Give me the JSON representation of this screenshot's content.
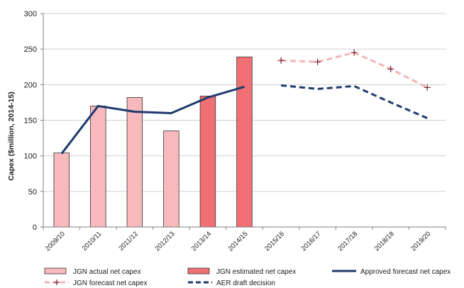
{
  "chart_data": {
    "type": "bar",
    "title": "",
    "xlabel": "",
    "ylabel": "Capex ($million, 2014-15)",
    "ylim": [
      0,
      300
    ],
    "yticks": [
      0,
      50,
      100,
      150,
      200,
      250,
      300
    ],
    "grid": true,
    "legend_position": "bottom",
    "categories": [
      "2009/10",
      "2010/11",
      "2011/12",
      "2012/13",
      "2013/14",
      "2014/15",
      "2015/16",
      "2016/17",
      "2017/18",
      "2018/18",
      "2019/20"
    ],
    "series": [
      {
        "name": "JGN actual net capex",
        "kind": "bar",
        "color": "#f7b9bc",
        "values": [
          104,
          170,
          182,
          135,
          null,
          null,
          null,
          null,
          null,
          null,
          null
        ]
      },
      {
        "name": "JGN estimated net capex",
        "kind": "bar",
        "color": "#f07074",
        "values": [
          null,
          null,
          null,
          null,
          184,
          239,
          null,
          null,
          null,
          null,
          null
        ]
      },
      {
        "name": "Approved forecast net capex",
        "kind": "line",
        "color": "#1f3a6e",
        "dash": "solid",
        "values": [
          103,
          170,
          162,
          160,
          182,
          197,
          null,
          null,
          null,
          null,
          null
        ]
      },
      {
        "name": "JGN forecast net capex",
        "kind": "line",
        "color": "#f5b4b8",
        "dash": "dashed",
        "marker": "plus",
        "marker_color": "#7a1f2a",
        "values": [
          null,
          null,
          null,
          null,
          null,
          null,
          234,
          232,
          245,
          222,
          196
        ]
      },
      {
        "name": "AER draft decision",
        "kind": "line",
        "color": "#1f3a6e",
        "dash": "dashed",
        "values": [
          null,
          null,
          null,
          null,
          null,
          null,
          199,
          194,
          198,
          175,
          153
        ]
      }
    ]
  }
}
